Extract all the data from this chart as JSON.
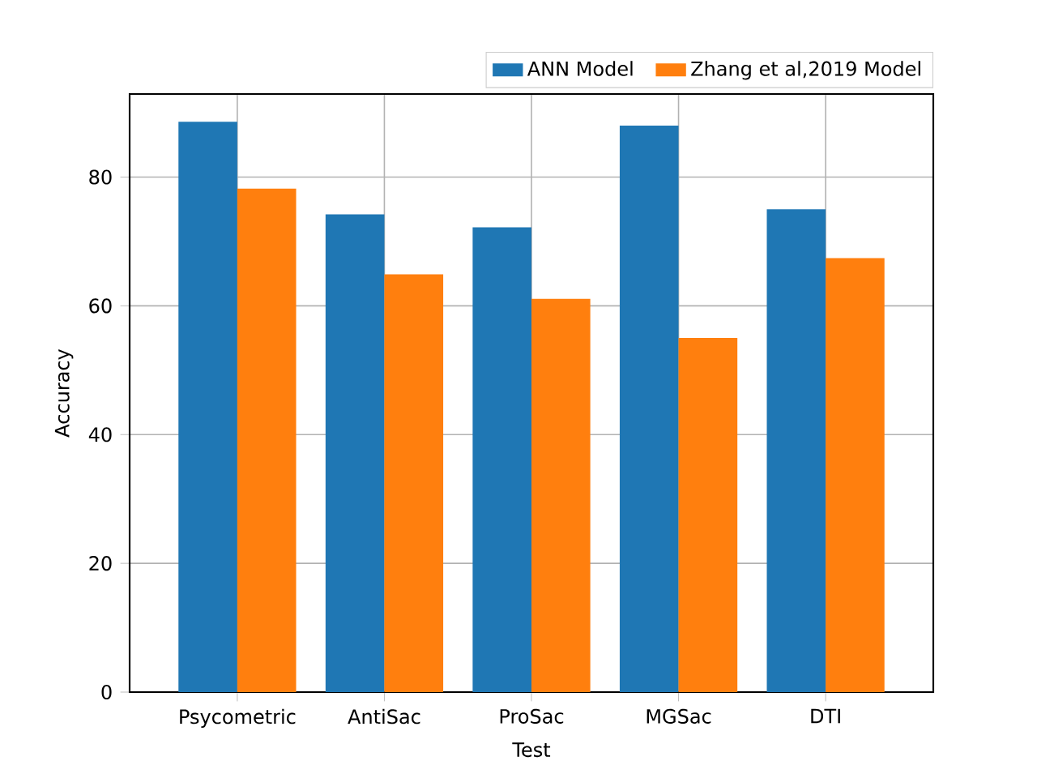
{
  "chart_data": {
    "type": "bar",
    "xlabel": "Test",
    "ylabel": "Accuracy",
    "categories": [
      "Psycometric",
      "AntiSac",
      "ProSac",
      "MGSac",
      "DTI"
    ],
    "series": [
      {
        "name": "ANN Model",
        "color": "#1f77b4",
        "values": [
          88.6,
          74.2,
          72.2,
          88.0,
          75.0
        ]
      },
      {
        "name": "Zhang et al,2019 Model",
        "color": "#ff7f0e",
        "values": [
          78.2,
          64.9,
          61.1,
          55.0,
          67.4
        ]
      }
    ],
    "ylim": [
      0,
      92.9
    ],
    "yticks": [
      0,
      20,
      40,
      60,
      80
    ],
    "grid": true,
    "legend": "top right"
  }
}
